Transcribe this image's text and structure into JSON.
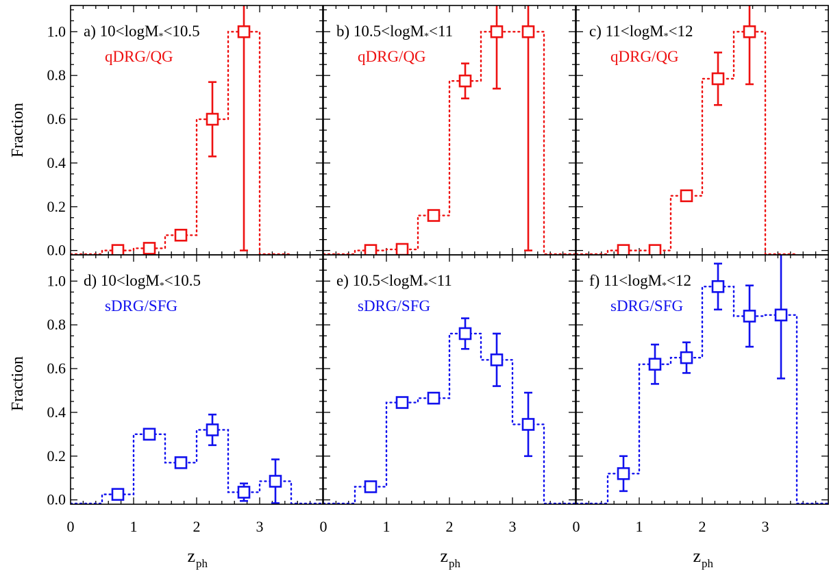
{
  "figure": {
    "ylabel": "Fraction",
    "xlabel_main": "z",
    "xlabel_sub": "ph"
  },
  "chart_data": [
    {
      "type": "line",
      "panel": "a",
      "label_prefix": "a) 10<logM",
      "label_sub": "*",
      "label_suffix": "<10.5",
      "sample": "qDRG/QG",
      "color": "#ee1111",
      "xlim": [
        0,
        4
      ],
      "ylim": [
        -0.02,
        1.12
      ],
      "x_ticks": [
        0,
        1,
        2,
        3
      ],
      "y_ticks": [
        0.0,
        0.2,
        0.4,
        0.6,
        0.8,
        1.0
      ],
      "y_tick_labels": [
        "0.0",
        "0.2",
        "0.4",
        "0.6",
        "0.8",
        "1.0"
      ],
      "x": [
        0.75,
        1.25,
        1.75,
        2.25,
        2.75
      ],
      "y": [
        0.0,
        0.01,
        0.07,
        0.6,
        1.0
      ],
      "err_lo": [
        0.0,
        0.01,
        0.02,
        0.17,
        1.0
      ],
      "err_hi": [
        0.0,
        0.01,
        0.02,
        0.17,
        0.15
      ],
      "bin_edges": [
        0.5,
        1.0,
        1.5,
        2.0,
        2.5,
        3.0
      ]
    },
    {
      "type": "line",
      "panel": "b",
      "label_prefix": "b) 10.5<logM",
      "label_sub": "*",
      "label_suffix": "<11",
      "sample": "qDRG/QG",
      "color": "#ee1111",
      "xlim": [
        0,
        4
      ],
      "ylim": [
        -0.02,
        1.12
      ],
      "x_ticks": [
        0,
        1,
        2,
        3
      ],
      "y_ticks": [
        0.0,
        0.2,
        0.4,
        0.6,
        0.8,
        1.0
      ],
      "y_tick_labels": [],
      "x": [
        0.75,
        1.25,
        1.75,
        2.25,
        2.75,
        3.25
      ],
      "y": [
        0.0,
        0.005,
        0.16,
        0.775,
        1.0,
        1.0
      ],
      "err_lo": [
        0.0,
        0.005,
        0.015,
        0.08,
        0.26,
        1.0
      ],
      "err_hi": [
        0.0,
        0.005,
        0.015,
        0.08,
        0.15,
        0.15
      ],
      "bin_edges": [
        0.5,
        1.0,
        1.5,
        2.0,
        2.5,
        3.0,
        3.5
      ]
    },
    {
      "type": "line",
      "panel": "c",
      "label_prefix": "c) 11<logM",
      "label_sub": "*",
      "label_suffix": "<12",
      "sample": "qDRG/QG",
      "color": "#ee1111",
      "xlim": [
        0,
        4
      ],
      "ylim": [
        -0.02,
        1.12
      ],
      "x_ticks": [
        0,
        1,
        2,
        3
      ],
      "y_ticks": [
        0.0,
        0.2,
        0.4,
        0.6,
        0.8,
        1.0
      ],
      "y_tick_labels": [],
      "x": [
        0.75,
        1.25,
        1.75,
        2.25,
        2.75
      ],
      "y": [
        0.0,
        0.0,
        0.25,
        0.785,
        1.0
      ],
      "err_lo": [
        0.0,
        0.0,
        0.02,
        0.12,
        0.24
      ],
      "err_hi": [
        0.0,
        0.0,
        0.02,
        0.12,
        0.15
      ],
      "bin_edges": [
        0.5,
        1.0,
        1.5,
        2.0,
        2.5,
        3.0
      ]
    },
    {
      "type": "line",
      "panel": "d",
      "label_prefix": "d) 10<logM",
      "label_sub": "*",
      "label_suffix": "<10.5",
      "sample": "sDRG/SFG",
      "color": "#1111ee",
      "xlim": [
        0,
        4
      ],
      "ylim": [
        -0.02,
        1.12
      ],
      "x_ticks": [
        0,
        1,
        2,
        3
      ],
      "x_tick_labels": [
        "0",
        "1",
        "2",
        "3"
      ],
      "y_ticks": [
        0.0,
        0.2,
        0.4,
        0.6,
        0.8,
        1.0
      ],
      "y_tick_labels": [
        "0.0",
        "0.2",
        "0.4",
        "0.6",
        "0.8",
        "1.0"
      ],
      "x": [
        0.75,
        1.25,
        1.75,
        2.25,
        2.75,
        3.25
      ],
      "y": [
        0.025,
        0.3,
        0.17,
        0.32,
        0.035,
        0.085
      ],
      "err_lo": [
        0.01,
        0.02,
        0.02,
        0.07,
        0.04,
        0.1
      ],
      "err_hi": [
        0.01,
        0.02,
        0.02,
        0.07,
        0.04,
        0.1
      ],
      "bin_edges": [
        0.5,
        1.0,
        1.5,
        2.0,
        2.5,
        3.0,
        3.5
      ]
    },
    {
      "type": "line",
      "panel": "e",
      "label_prefix": "e) 10.5<logM",
      "label_sub": "*",
      "label_suffix": "<11",
      "sample": "sDRG/SFG",
      "color": "#1111ee",
      "xlim": [
        0,
        4
      ],
      "ylim": [
        -0.02,
        1.12
      ],
      "x_ticks": [
        0,
        1,
        2,
        3
      ],
      "x_tick_labels": [
        "0",
        "1",
        "2",
        "3"
      ],
      "y_ticks": [
        0.0,
        0.2,
        0.4,
        0.6,
        0.8,
        1.0
      ],
      "y_tick_labels": [],
      "x": [
        0.75,
        1.25,
        1.75,
        2.25,
        2.75,
        3.25
      ],
      "y": [
        0.06,
        0.445,
        0.465,
        0.76,
        0.64,
        0.345
      ],
      "err_lo": [
        0.015,
        0.02,
        0.02,
        0.07,
        0.12,
        0.145
      ],
      "err_hi": [
        0.015,
        0.02,
        0.02,
        0.07,
        0.12,
        0.145
      ],
      "bin_edges": [
        0.5,
        1.0,
        1.5,
        2.0,
        2.5,
        3.0,
        3.5
      ]
    },
    {
      "type": "line",
      "panel": "f",
      "label_prefix": "f) 11<logM",
      "label_sub": "*",
      "label_suffix": "<12",
      "sample": "sDRG/SFG",
      "color": "#1111ee",
      "xlim": [
        0,
        4
      ],
      "ylim": [
        -0.02,
        1.12
      ],
      "x_ticks": [
        0,
        1,
        2,
        3
      ],
      "x_tick_labels": [
        "0",
        "1",
        "2",
        "3"
      ],
      "y_ticks": [
        0.0,
        0.2,
        0.4,
        0.6,
        0.8,
        1.0
      ],
      "y_tick_labels": [],
      "x": [
        0.75,
        1.25,
        1.75,
        2.25,
        2.75,
        3.25
      ],
      "y": [
        0.12,
        0.62,
        0.65,
        0.975,
        0.84,
        0.845
      ],
      "err_lo": [
        0.08,
        0.09,
        0.07,
        0.105,
        0.14,
        0.29
      ],
      "err_hi": [
        0.08,
        0.09,
        0.07,
        0.105,
        0.14,
        0.29
      ],
      "bin_edges": [
        0.5,
        1.0,
        1.5,
        2.0,
        2.5,
        3.0,
        3.5
      ]
    }
  ]
}
